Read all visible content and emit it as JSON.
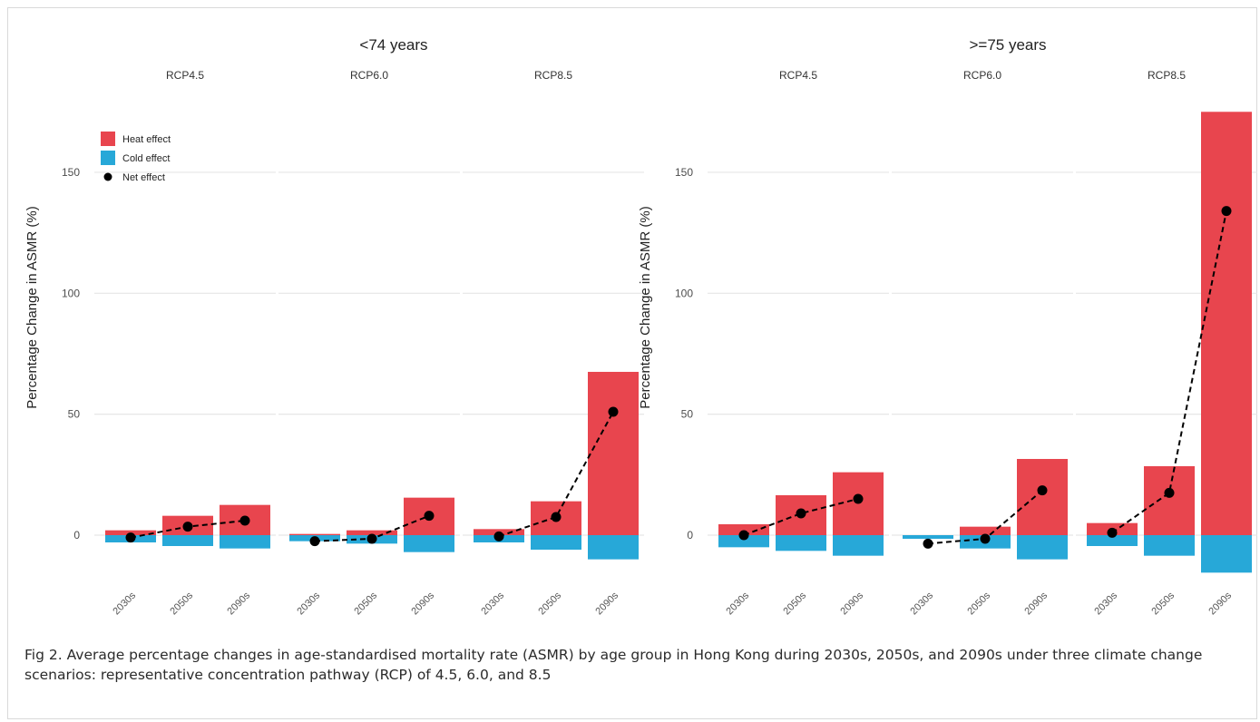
{
  "caption": "Fig 2.  Average percentage changes in age-standardised mortality rate (ASMR) by age group in Hong Kong during 2030s, 2050s, and 2090s under three climate change scenarios: representative concentration pathway (RCP) of 4.5, 6.0, and 8.5",
  "colors": {
    "heat": "#e8454e",
    "cold": "#27a8d8",
    "net": "#000000",
    "grid": "#e6e6e6"
  },
  "chart_data": {
    "type": "bar",
    "ylabel": "Percentage Change in ASMR (%)",
    "yticks": [
      0,
      50,
      100,
      150
    ],
    "ylim": [
      -15,
      175
    ],
    "categories": [
      "2030s",
      "2050s",
      "2090s"
    ],
    "legend": {
      "placement": "top-left",
      "entries": [
        "Heat effect",
        "Cold effect",
        "Net effect"
      ]
    },
    "panels": [
      {
        "title": "<74 years",
        "scenarios": [
          {
            "name": "RCP4.5",
            "heat": [
              2,
              8,
              12.5
            ],
            "cold": [
              -3,
              -4.5,
              -5.5
            ],
            "net": [
              -1,
              3.5,
              6
            ]
          },
          {
            "name": "RCP6.0",
            "heat": [
              0.5,
              2,
              15.5
            ],
            "cold": [
              -2.5,
              -3.5,
              -7
            ],
            "net": [
              -2.5,
              -1.5,
              8
            ]
          },
          {
            "name": "RCP8.5",
            "heat": [
              2.5,
              14,
              67.5
            ],
            "cold": [
              -3,
              -6,
              -10
            ],
            "net": [
              -0.5,
              7.5,
              51
            ]
          }
        ]
      },
      {
        "title": ">=75 years",
        "scenarios": [
          {
            "name": "RCP4.5",
            "heat": [
              4.5,
              16.5,
              26
            ],
            "cold": [
              -5,
              -6.5,
              -8.5
            ],
            "net": [
              0,
              9,
              15
            ]
          },
          {
            "name": "RCP6.0",
            "heat": [
              -1.5,
              3.5,
              31.5
            ],
            "cold": [
              -1.5,
              -5.5,
              -10
            ],
            "net": [
              -3.5,
              -1.5,
              18.5
            ]
          },
          {
            "name": "RCP8.5",
            "heat": [
              5,
              28.5,
              175
            ],
            "cold": [
              -4.5,
              -8.5,
              -15.5
            ],
            "net": [
              1,
              17.5,
              134
            ]
          }
        ]
      }
    ]
  }
}
